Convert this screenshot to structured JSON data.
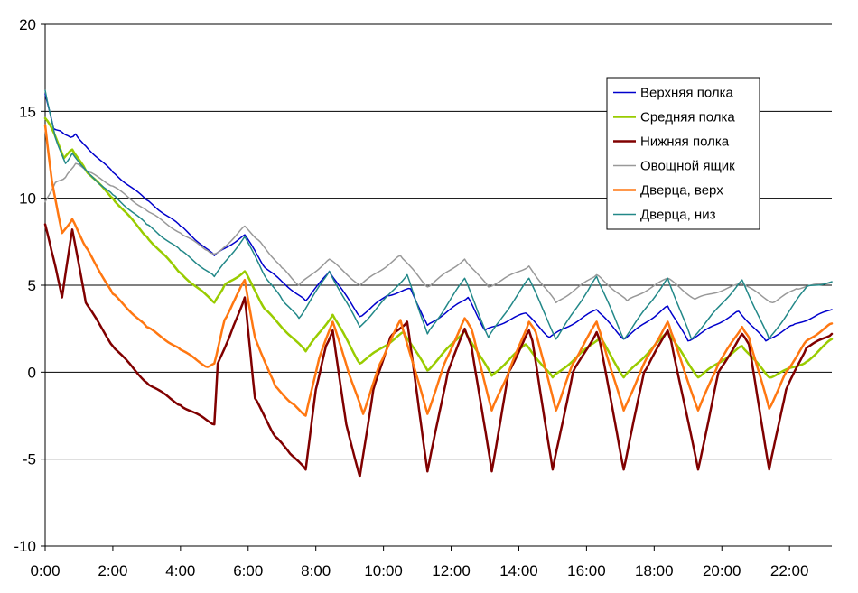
{
  "chart_data": {
    "type": "line",
    "xlim": [
      0,
      23.25
    ],
    "ylim": [
      -10,
      20
    ],
    "x_ticks": [
      {
        "v": 0,
        "label": "0:00"
      },
      {
        "v": 2,
        "label": "2:00"
      },
      {
        "v": 4,
        "label": "4:00"
      },
      {
        "v": 6,
        "label": "6:00"
      },
      {
        "v": 8,
        "label": "8:00"
      },
      {
        "v": 10,
        "label": "10:00"
      },
      {
        "v": 12,
        "label": "12:00"
      },
      {
        "v": 14,
        "label": "14:00"
      },
      {
        "v": 16,
        "label": "16:00"
      },
      {
        "v": 18,
        "label": "18:00"
      },
      {
        "v": 20,
        "label": "20:00"
      },
      {
        "v": 22,
        "label": "22:00"
      }
    ],
    "y_ticks": [
      {
        "v": 20,
        "label": "20"
      },
      {
        "v": 15,
        "label": "15"
      },
      {
        "v": 10,
        "label": "10"
      },
      {
        "v": 5,
        "label": "5"
      },
      {
        "v": 0,
        "label": "0"
      },
      {
        "v": -5,
        "label": "-5"
      },
      {
        "v": -10,
        "label": "-10"
      }
    ],
    "grid": "horizontal",
    "legend_position": "top-right",
    "series": [
      {
        "name": "Верхняя полка",
        "color": "#0000cc",
        "width": 1.5,
        "points": [
          [
            0,
            16.0
          ],
          [
            0.25,
            14.0
          ],
          [
            0.5,
            13.8
          ],
          [
            0.75,
            13.5
          ],
          [
            0.9,
            13.7
          ],
          [
            1.2,
            13.0
          ],
          [
            2,
            11.5
          ],
          [
            3,
            9.9
          ],
          [
            4,
            8.4
          ],
          [
            5,
            6.7
          ],
          [
            5.9,
            7.9
          ],
          [
            6.5,
            6.0
          ],
          [
            7.7,
            4.1
          ],
          [
            8.4,
            5.8
          ],
          [
            9.3,
            3.2
          ],
          [
            10.1,
            4.4
          ],
          [
            10.8,
            4.8
          ],
          [
            11.3,
            2.7
          ],
          [
            12.5,
            4.3
          ],
          [
            13.0,
            2.4
          ],
          [
            14.2,
            3.4
          ],
          [
            14.9,
            2.0
          ],
          [
            16.3,
            3.6
          ],
          [
            17.1,
            1.9
          ],
          [
            18.4,
            3.8
          ],
          [
            19.0,
            1.8
          ],
          [
            20.5,
            3.5
          ],
          [
            21.3,
            1.8
          ],
          [
            22.1,
            2.7
          ],
          [
            23.25,
            3.6
          ]
        ]
      },
      {
        "name": "Средняя полка",
        "color": "#99cc00",
        "width": 2.5,
        "points": [
          [
            0,
            14.6
          ],
          [
            0.2,
            14.0
          ],
          [
            0.55,
            12.3
          ],
          [
            0.8,
            12.8
          ],
          [
            1.2,
            11.6
          ],
          [
            2,
            10.0
          ],
          [
            3,
            7.8
          ],
          [
            4,
            5.7
          ],
          [
            5,
            4.0
          ],
          [
            5.3,
            5.0
          ],
          [
            5.9,
            5.8
          ],
          [
            6.5,
            3.6
          ],
          [
            7.7,
            1.2
          ],
          [
            8.5,
            3.3
          ],
          [
            9.3,
            0.5
          ],
          [
            10.6,
            2.3
          ],
          [
            11.3,
            0.1
          ],
          [
            12.4,
            2.4
          ],
          [
            13.2,
            -0.2
          ],
          [
            14.2,
            1.6
          ],
          [
            15.0,
            -0.3
          ],
          [
            16.4,
            2.0
          ],
          [
            17.1,
            -0.3
          ],
          [
            18.4,
            2.3
          ],
          [
            19.3,
            -0.3
          ],
          [
            20.6,
            1.5
          ],
          [
            21.4,
            -0.3
          ],
          [
            22.5,
            0.6
          ],
          [
            23.25,
            1.9
          ]
        ]
      },
      {
        "name": "Нижняя полка",
        "color": "#800000",
        "width": 2.5,
        "points": [
          [
            0,
            8.5
          ],
          [
            0.25,
            6.5
          ],
          [
            0.5,
            4.3
          ],
          [
            0.8,
            8.2
          ],
          [
            1.2,
            4.0
          ],
          [
            2,
            1.5
          ],
          [
            3,
            -0.6
          ],
          [
            4,
            -1.9
          ],
          [
            5,
            -3.0
          ],
          [
            5.1,
            0.5
          ],
          [
            5.5,
            2.3
          ],
          [
            5.9,
            4.3
          ],
          [
            6.2,
            -1.5
          ],
          [
            6.8,
            -3.7
          ],
          [
            7.3,
            -4.8
          ],
          [
            7.7,
            -5.6
          ],
          [
            8.0,
            -1.0
          ],
          [
            8.3,
            1.5
          ],
          [
            8.5,
            2.4
          ],
          [
            8.9,
            -3.0
          ],
          [
            9.3,
            -6.0
          ],
          [
            9.7,
            -1.0
          ],
          [
            10.2,
            2.0
          ],
          [
            10.7,
            2.9
          ],
          [
            11.3,
            -5.7
          ],
          [
            11.9,
            0.0
          ],
          [
            12.4,
            2.5
          ],
          [
            12.6,
            1.5
          ],
          [
            13.2,
            -5.7
          ],
          [
            13.7,
            0.0
          ],
          [
            14.3,
            2.4
          ],
          [
            14.4,
            1.8
          ],
          [
            15.0,
            -5.6
          ],
          [
            15.6,
            0.0
          ],
          [
            16.3,
            2.3
          ],
          [
            16.4,
            1.7
          ],
          [
            17.1,
            -5.6
          ],
          [
            17.7,
            0.0
          ],
          [
            18.4,
            2.4
          ],
          [
            18.5,
            1.8
          ],
          [
            19.3,
            -5.6
          ],
          [
            19.9,
            0.0
          ],
          [
            20.6,
            2.2
          ],
          [
            20.8,
            1.6
          ],
          [
            21.4,
            -5.6
          ],
          [
            21.9,
            -1.0
          ],
          [
            22.5,
            1.4
          ],
          [
            23.25,
            2.2
          ]
        ]
      },
      {
        "name": "Овощной ящик",
        "color": "#999999",
        "width": 1.5,
        "points": [
          [
            0,
            9.8
          ],
          [
            0.3,
            10.9
          ],
          [
            0.6,
            11.2
          ],
          [
            0.9,
            12.0
          ],
          [
            1.3,
            11.5
          ],
          [
            2,
            10.7
          ],
          [
            3,
            9.3
          ],
          [
            4,
            8.0
          ],
          [
            4.8,
            7.0
          ],
          [
            5.0,
            6.8
          ],
          [
            5.3,
            7.2
          ],
          [
            5.9,
            8.4
          ],
          [
            6.3,
            7.6
          ],
          [
            7.0,
            6.0
          ],
          [
            7.5,
            5.0
          ],
          [
            8.4,
            6.5
          ],
          [
            9.3,
            5.0
          ],
          [
            10.5,
            6.7
          ],
          [
            11.3,
            4.9
          ],
          [
            12.4,
            6.5
          ],
          [
            13.1,
            4.9
          ],
          [
            14.3,
            6.1
          ],
          [
            15.1,
            4.0
          ],
          [
            16.3,
            5.6
          ],
          [
            17.2,
            4.1
          ],
          [
            18.4,
            5.4
          ],
          [
            19.2,
            4.2
          ],
          [
            20.6,
            5.1
          ],
          [
            21.5,
            4.0
          ],
          [
            22.2,
            4.8
          ],
          [
            23.25,
            5.2
          ]
        ]
      },
      {
        "name": "Дверца, верх",
        "color": "#ff7711",
        "width": 2.5,
        "points": [
          [
            0,
            14.2
          ],
          [
            0.2,
            11.0
          ],
          [
            0.5,
            8.0
          ],
          [
            0.8,
            8.8
          ],
          [
            1.2,
            7.2
          ],
          [
            2,
            4.5
          ],
          [
            3,
            2.6
          ],
          [
            4,
            1.3
          ],
          [
            4.8,
            0.3
          ],
          [
            5.0,
            0.5
          ],
          [
            5.3,
            3.0
          ],
          [
            5.9,
            5.3
          ],
          [
            6.2,
            2.0
          ],
          [
            6.8,
            -0.8
          ],
          [
            7.3,
            -1.8
          ],
          [
            7.7,
            -2.5
          ],
          [
            8.1,
            0.8
          ],
          [
            8.5,
            2.9
          ],
          [
            9.0,
            -0.2
          ],
          [
            9.4,
            -2.4
          ],
          [
            9.9,
            0.5
          ],
          [
            10.5,
            3.0
          ],
          [
            11.3,
            -2.4
          ],
          [
            11.8,
            0.5
          ],
          [
            12.4,
            3.1
          ],
          [
            12.6,
            2.5
          ],
          [
            13.2,
            -2.2
          ],
          [
            13.7,
            0.0
          ],
          [
            14.3,
            2.9
          ],
          [
            14.5,
            2.3
          ],
          [
            15.1,
            -2.2
          ],
          [
            15.6,
            0.5
          ],
          [
            16.3,
            2.9
          ],
          [
            16.4,
            2.3
          ],
          [
            17.1,
            -2.2
          ],
          [
            17.7,
            0.5
          ],
          [
            18.4,
            2.9
          ],
          [
            18.5,
            2.3
          ],
          [
            19.3,
            -2.2
          ],
          [
            19.9,
            0.5
          ],
          [
            20.6,
            2.6
          ],
          [
            20.8,
            2.0
          ],
          [
            21.4,
            -2.1
          ],
          [
            21.9,
            0.0
          ],
          [
            22.5,
            1.8
          ],
          [
            23.25,
            2.8
          ]
        ]
      },
      {
        "name": "Дверца, низ",
        "color": "#228888",
        "width": 1.5,
        "points": [
          [
            0,
            16.2
          ],
          [
            0.3,
            13.5
          ],
          [
            0.6,
            12.0
          ],
          [
            0.8,
            12.6
          ],
          [
            1.3,
            11.4
          ],
          [
            2,
            10.2
          ],
          [
            3,
            8.5
          ],
          [
            4,
            7.0
          ],
          [
            5.0,
            5.5
          ],
          [
            5.9,
            7.8
          ],
          [
            6.5,
            5.5
          ],
          [
            7.0,
            4.2
          ],
          [
            7.5,
            3.1
          ],
          [
            8.4,
            5.8
          ],
          [
            9.3,
            2.6
          ],
          [
            10.7,
            5.6
          ],
          [
            11.3,
            2.2
          ],
          [
            12.4,
            5.4
          ],
          [
            13.1,
            2.0
          ],
          [
            14.3,
            5.4
          ],
          [
            15.1,
            1.9
          ],
          [
            16.3,
            5.5
          ],
          [
            17.1,
            1.9
          ],
          [
            18.4,
            5.4
          ],
          [
            19.1,
            1.9
          ],
          [
            20.6,
            5.3
          ],
          [
            21.4,
            1.9
          ],
          [
            22.5,
            4.9
          ],
          [
            23.25,
            5.2
          ]
        ]
      }
    ]
  }
}
